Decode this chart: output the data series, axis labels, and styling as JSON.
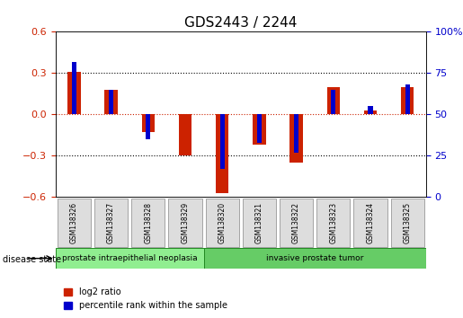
{
  "title": "GDS2443 / 2244",
  "samples": [
    "GSM138326",
    "GSM138327",
    "GSM138328",
    "GSM138329",
    "GSM138320",
    "GSM138321",
    "GSM138322",
    "GSM138323",
    "GSM138324",
    "GSM138325"
  ],
  "log2_ratio": [
    0.31,
    0.18,
    -0.13,
    -0.3,
    -0.57,
    -0.22,
    -0.35,
    0.2,
    0.03,
    0.2
  ],
  "percentile_rank": [
    82,
    65,
    35,
    50,
    17,
    33,
    27,
    65,
    55,
    68
  ],
  "ylim_left": [
    -0.6,
    0.6
  ],
  "ylim_right": [
    0,
    100
  ],
  "yticks_left": [
    -0.6,
    -0.3,
    0,
    0.3,
    0.6
  ],
  "yticks_right": [
    0,
    25,
    50,
    75,
    100
  ],
  "disease_groups": [
    {
      "label": "prostate intraepithelial neoplasia",
      "start": 0,
      "end": 4,
      "color": "#90ee90"
    },
    {
      "label": "invasive prostate tumor",
      "start": 4,
      "end": 10,
      "color": "#66cc66"
    }
  ],
  "bar_color_red": "#cc2200",
  "bar_color_blue": "#0000cc",
  "zero_line_color": "#cc2200",
  "grid_color": "#000000",
  "bg_color": "#ffffff",
  "disease_label": "disease state",
  "legend_red": "log2 ratio",
  "legend_blue": "percentile rank within the sample",
  "bar_width": 0.35
}
